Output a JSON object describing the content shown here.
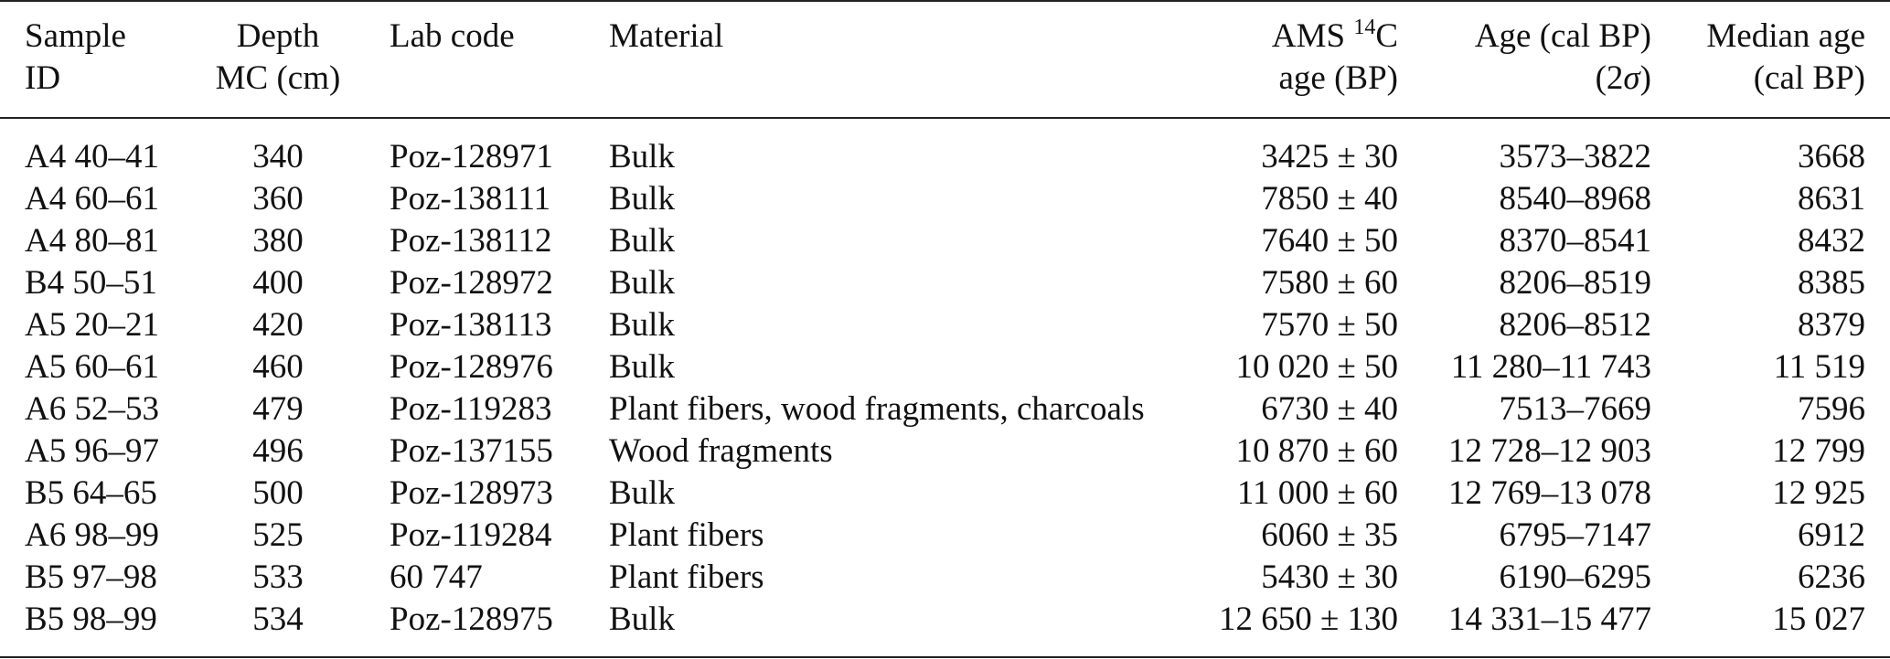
{
  "table": {
    "headers": {
      "sample_id": [
        "Sample",
        "ID"
      ],
      "depth": [
        "Depth",
        "MC (cm)"
      ],
      "lab_code": [
        "Lab code",
        ""
      ],
      "material": [
        "Material",
        ""
      ],
      "ams": {
        "line1_pre": "AMS ",
        "sup": "14",
        "line1_post": "C",
        "line2": "age (BP)"
      },
      "age": {
        "line1": "Age (cal BP)",
        "line2_pre": "(2",
        "sigma": "σ",
        "line2_post": ")"
      },
      "median": [
        "Median age",
        "(cal BP)"
      ]
    },
    "rows": [
      {
        "sample": "A4 40–41",
        "depth": "340",
        "lab": "Poz-128971",
        "material": "Bulk",
        "ams": "3425 ± 30",
        "age": "3573–3822",
        "median": "3668"
      },
      {
        "sample": "A4 60–61",
        "depth": "360",
        "lab": "Poz-138111",
        "material": "Bulk",
        "ams": "7850 ± 40",
        "age": "8540–8968",
        "median": "8631"
      },
      {
        "sample": "A4 80–81",
        "depth": "380",
        "lab": "Poz-138112",
        "material": "Bulk",
        "ams": "7640 ± 50",
        "age": "8370–8541",
        "median": "8432"
      },
      {
        "sample": "B4 50–51",
        "depth": "400",
        "lab": "Poz-128972",
        "material": "Bulk",
        "ams": "7580 ± 60",
        "age": "8206–8519",
        "median": "8385"
      },
      {
        "sample": "A5 20–21",
        "depth": "420",
        "lab": "Poz-138113",
        "material": "Bulk",
        "ams": "7570 ± 50",
        "age": "8206–8512",
        "median": "8379"
      },
      {
        "sample": "A5 60–61",
        "depth": "460",
        "lab": "Poz-128976",
        "material": "Bulk",
        "ams": "10 020 ± 50",
        "age": "11 280–11 743",
        "median": "11 519"
      },
      {
        "sample": "A6 52–53",
        "depth": "479",
        "lab": "Poz-119283",
        "material": "Plant fibers, wood fragments, charcoals",
        "ams": "6730 ± 40",
        "age": "7513–7669",
        "median": "7596"
      },
      {
        "sample": "A5 96–97",
        "depth": "496",
        "lab": "Poz-137155",
        "material": "Wood fragments",
        "ams": "10 870 ± 60",
        "age": "12 728–12 903",
        "median": "12 799"
      },
      {
        "sample": "B5 64–65",
        "depth": "500",
        "lab": "Poz-128973",
        "material": "Bulk",
        "ams": "11 000 ± 60",
        "age": "12 769–13 078",
        "median": "12 925"
      },
      {
        "sample": "A6 98–99",
        "depth": "525",
        "lab": "Poz-119284",
        "material": "Plant fibers",
        "ams": "6060 ± 35",
        "age": "6795–7147",
        "median": "6912"
      },
      {
        "sample": "B5 97–98",
        "depth": "533",
        "lab": "60 747",
        "material": "Plant fibers",
        "ams": "5430 ± 30",
        "age": "6190–6295",
        "median": "6236"
      },
      {
        "sample": "B5 98–99",
        "depth": "534",
        "lab": "Poz-128975",
        "material": "Bulk",
        "ams": "12 650 ± 130",
        "age": "14 331–15 477",
        "median": "15 027"
      }
    ]
  }
}
